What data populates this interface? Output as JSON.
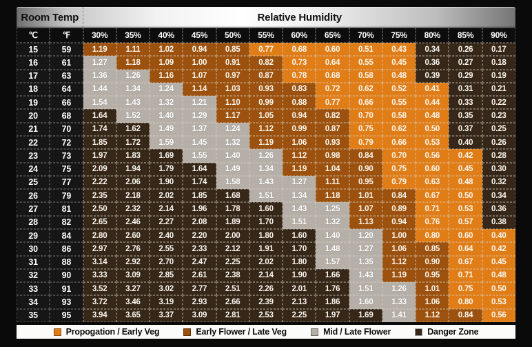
{
  "header": {
    "room_temp": "Room Temp",
    "relative_humidity": "Relative Humidity"
  },
  "column_headers": {
    "celsius": "℃",
    "fahrenheit": "℉"
  },
  "legend": [
    {
      "code": "P",
      "label": "Propogation / Early Veg",
      "color": "#E17D17"
    },
    {
      "code": "E",
      "label": "Early Flower / Late Veg",
      "color": "#9C520E"
    },
    {
      "code": "M",
      "label": "Mid / Late Flower",
      "color": "#B5AFA8"
    },
    {
      "code": "D",
      "label": "Danger Zone",
      "color": "#362718"
    }
  ],
  "colors": {
    "propagation_orange": "#E17D17",
    "early_flower_burnt": "#9C520E",
    "mid_late_flower_gray": "#B5AFA8",
    "danger_dark_brown": "#362718",
    "temp_column_black": "#161616",
    "background_black": "#0A0A0A",
    "legend_strip_white": "#FBFBF9"
  },
  "chart_data": {
    "type": "heatmap",
    "x_axis_label": "Relative Humidity",
    "y_axis_label": "Room Temp",
    "humidity_columns": [
      "30%",
      "35%",
      "40%",
      "45%",
      "50%",
      "55%",
      "60%",
      "65%",
      "70%",
      "75%",
      "80%",
      "85%",
      "90%"
    ],
    "band_legend": {
      "P": "Propogation / Early Veg",
      "E": "Early Flower / Late Veg",
      "M": "Mid / Late Flower",
      "D": "Danger Zone"
    },
    "rows": [
      {
        "c": "15",
        "f": "59",
        "values": [
          "1.19",
          "1.11",
          "1.02",
          "0.94",
          "0.85",
          "0.77",
          "0.68",
          "0.60",
          "0.51",
          "0.43",
          "0.34",
          "0.26",
          "0.17"
        ],
        "bands": "EEEEEPPPPPDDD"
      },
      {
        "c": "16",
        "f": "61",
        "values": [
          "1.27",
          "1.18",
          "1.09",
          "1.00",
          "0.91",
          "0.82",
          "0.73",
          "0.64",
          "0.55",
          "0.45",
          "0.36",
          "0.27",
          "0.18"
        ],
        "bands": "MEEEEEPPPPDDD"
      },
      {
        "c": "17",
        "f": "63",
        "values": [
          "1.36",
          "1.26",
          "1.16",
          "1.07",
          "0.97",
          "0.87",
          "0.78",
          "0.68",
          "0.58",
          "0.48",
          "0.39",
          "0.29",
          "0.19"
        ],
        "bands": "MMEEEEPPPPDDD"
      },
      {
        "c": "18",
        "f": "64",
        "values": [
          "1.44",
          "1.34",
          "1.24",
          "1.14",
          "1.03",
          "0.93",
          "0.83",
          "0.72",
          "0.62",
          "0.52",
          "0.41",
          "0.31",
          "0.21"
        ],
        "bands": "MMMEEEEPPPPDD"
      },
      {
        "c": "19",
        "f": "66",
        "values": [
          "1.54",
          "1.43",
          "1.32",
          "1.21",
          "1.10",
          "0.99",
          "0.88",
          "0.77",
          "0.66",
          "0.55",
          "0.44",
          "0.33",
          "0.22"
        ],
        "bands": "MMMMEEEPPPPDD"
      },
      {
        "c": "20",
        "f": "68",
        "values": [
          "1.64",
          "1.52",
          "1.40",
          "1.29",
          "1.17",
          "1.05",
          "0.94",
          "0.82",
          "0.70",
          "0.58",
          "0.48",
          "0.35",
          "0.23"
        ],
        "bands": "DMMMEEEEPPPDD"
      },
      {
        "c": "21",
        "f": "70",
        "values": [
          "1.74",
          "1.62",
          "1.49",
          "1.37",
          "1.24",
          "1.12",
          "0.99",
          "0.87",
          "0.75",
          "0.62",
          "0.50",
          "0.37",
          "0.25"
        ],
        "bands": "DDMMMEEEPPPDD"
      },
      {
        "c": "22",
        "f": "72",
        "values": [
          "1.85",
          "1.72",
          "1.59",
          "1.45",
          "1.32",
          "1.19",
          "1.06",
          "0.93",
          "0.79",
          "0.66",
          "0.53",
          "0.40",
          "0.26"
        ],
        "bands": "DDMMMEEEPPPDD"
      },
      {
        "c": "23",
        "f": "73",
        "values": [
          "1.97",
          "1.83",
          "1.69",
          "1.55",
          "1.40",
          "1.26",
          "1.12",
          "0.98",
          "0.84",
          "0.70",
          "0.56",
          "0.42",
          "0.28"
        ],
        "bands": "DDDMMMEEEPPPD"
      },
      {
        "c": "24",
        "f": "75",
        "values": [
          "2.09",
          "1.94",
          "1.79",
          "1.64",
          "1.49",
          "1.34",
          "1.19",
          "1.04",
          "0.90",
          "0.75",
          "0.60",
          "0.45",
          "0.30"
        ],
        "bands": "DDDDMMEEEPPPD"
      },
      {
        "c": "25",
        "f": "77",
        "values": [
          "2.22",
          "2.06",
          "1.90",
          "1.74",
          "1.58",
          "1.43",
          "1.27",
          "1.11",
          "0.95",
          "0.79",
          "0.63",
          "0.48",
          "0.32"
        ],
        "bands": "DDDDMMMEEPPPD"
      },
      {
        "c": "26",
        "f": "79",
        "values": [
          "2.35",
          "2.18",
          "2.02",
          "1.85",
          "1.68",
          "1.51",
          "1.34",
          "1.18",
          "1.01",
          "0.84",
          "0.67",
          "0.50",
          "0.34"
        ],
        "bands": "DDDDDMMEEEPPD"
      },
      {
        "c": "27",
        "f": "81",
        "values": [
          "2.50",
          "2.32",
          "2.14",
          "1.96",
          "1.78",
          "1.60",
          "1.43",
          "1.25",
          "1.07",
          "0.89",
          "0.71",
          "0.53",
          "0.36"
        ],
        "bands": "DDDDDDMMEEPPD"
      },
      {
        "c": "28",
        "f": "82",
        "values": [
          "2.65",
          "2.46",
          "2.27",
          "2.08",
          "1.89",
          "1.70",
          "1.51",
          "1.32",
          "1.13",
          "0.94",
          "0.76",
          "0.57",
          "0.38"
        ],
        "bands": "DDDDDDMMEEPPD"
      },
      {
        "c": "29",
        "f": "84",
        "values": [
          "2.80",
          "2.60",
          "2.40",
          "2.20",
          "2.00",
          "1.80",
          "1.60",
          "1.40",
          "1.20",
          "1.00",
          "0.80",
          "0.60",
          "0.40"
        ],
        "bands": "DDDDDDDMMEPPP"
      },
      {
        "c": "30",
        "f": "86",
        "values": [
          "2.97",
          "2.76",
          "2.55",
          "2.33",
          "2.12",
          "1.91",
          "1.70",
          "1.48",
          "1.27",
          "1.06",
          "0.85",
          "0.64",
          "0.42"
        ],
        "bands": "DDDDDDDMMEEPP"
      },
      {
        "c": "31",
        "f": "88",
        "values": [
          "3.14",
          "2.92",
          "2.70",
          "2.47",
          "2.25",
          "2.02",
          "1.80",
          "1.57",
          "1.35",
          "1.12",
          "0.90",
          "0.67",
          "0.45"
        ],
        "bands": "DDDDDDDMMEEPP"
      },
      {
        "c": "32",
        "f": "90",
        "values": [
          "3.33",
          "3.09",
          "2.85",
          "2.61",
          "2.38",
          "2.14",
          "1.90",
          "1.66",
          "1.43",
          "1.19",
          "0.95",
          "0.71",
          "0.48"
        ],
        "bands": "DDDDDDDDMEEPP"
      },
      {
        "c": "33",
        "f": "91",
        "values": [
          "3.52",
          "3.27",
          "3.02",
          "2.77",
          "2.51",
          "2.26",
          "2.01",
          "1.76",
          "1.51",
          "1.26",
          "1.01",
          "0.75",
          "0.50"
        ],
        "bands": "DDDDDDDDMMEPP"
      },
      {
        "c": "34",
        "f": "93",
        "values": [
          "3.72",
          "3.46",
          "3.19",
          "2.93",
          "2.66",
          "2.39",
          "2.13",
          "1.86",
          "1.60",
          "1.33",
          "1.06",
          "0.80",
          "0.53"
        ],
        "bands": "DDDDDDDDMMEPP"
      },
      {
        "c": "35",
        "f": "95",
        "values": [
          "3.94",
          "3.65",
          "3.37",
          "3.09",
          "2.81",
          "2.53",
          "2.25",
          "1.97",
          "1.69",
          "1.41",
          "1.12",
          "0.84",
          "0.56"
        ],
        "bands": "DDDDDDDDDMEEP"
      }
    ]
  }
}
